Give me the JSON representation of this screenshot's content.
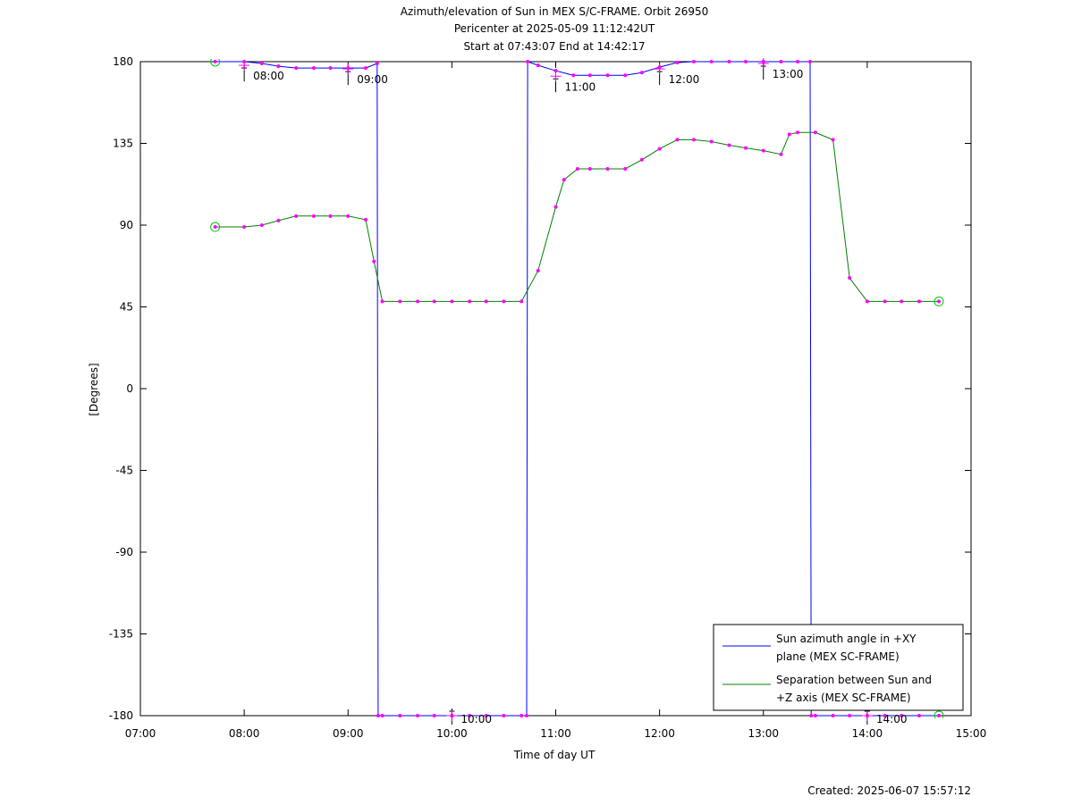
{
  "chart_data": {
    "type": "line",
    "title_lines": [
      "Azimuth/elevation of Sun in MEX S/C-FRAME.  Orbit 26950",
      "Pericenter at 2025-05-09 11:12:42UT",
      "Start at 07:43:07 End at 14:42:17"
    ],
    "xlabel": "Time of day UT",
    "ylabel": "[Degrees]",
    "xlim": [
      7,
      15
    ],
    "ylim": [
      -180,
      180
    ],
    "x_ticks": [
      "07:00",
      "08:00",
      "09:00",
      "10:00",
      "11:00",
      "12:00",
      "13:00",
      "14:00",
      "15:00"
    ],
    "y_ticks": [
      "180",
      "135",
      "90",
      "45",
      "0",
      "-45",
      "-90",
      "-135",
      "-180"
    ],
    "legend_position": "bottom-right",
    "hour_annotations": [
      {
        "x": 8,
        "label": "08:00",
        "y": 178
      },
      {
        "x": 9,
        "label": "09:00",
        "y": 176
      },
      {
        "x": 10,
        "label": "10:00",
        "y": -180
      },
      {
        "x": 11,
        "label": "11:00",
        "y": 172
      },
      {
        "x": 12,
        "label": "12:00",
        "y": 176
      },
      {
        "x": 13,
        "label": "13:00",
        "y": 179
      },
      {
        "x": 14,
        "label": "14:00",
        "y": -180
      }
    ],
    "series": [
      {
        "name": "Sun azimuth angle in +XY plane (MEX SC-FRAME)",
        "color": "#0000ff",
        "x": [
          7.72,
          8.0,
          8.17,
          8.33,
          8.5,
          8.67,
          8.83,
          9.0,
          9.17,
          9.28,
          9.29,
          9.33,
          9.5,
          9.67,
          9.83,
          10.0,
          10.17,
          10.33,
          10.5,
          10.67,
          10.72,
          10.73,
          10.83,
          11.0,
          11.17,
          11.33,
          11.5,
          11.67,
          11.83,
          12.0,
          12.17,
          12.33,
          12.5,
          12.67,
          12.83,
          13.0,
          13.17,
          13.33,
          13.45,
          13.46,
          13.5,
          13.67,
          13.83,
          14.0,
          14.17,
          14.33,
          14.5,
          14.69
        ],
        "y": [
          180,
          180,
          179,
          177.5,
          176.5,
          176.5,
          176.5,
          176.5,
          176.5,
          179,
          -180,
          -180,
          -180,
          -180,
          -180,
          -180,
          -180,
          -180,
          -180,
          -180,
          -180,
          180,
          178,
          175,
          172.5,
          172.5,
          172.5,
          172.5,
          174,
          177,
          179.5,
          180,
          180,
          180,
          180,
          180,
          180,
          180,
          180,
          -180,
          -180,
          -180,
          -180,
          -180,
          -180,
          -180,
          -180,
          -180
        ]
      },
      {
        "name": "Separation between Sun and +Z axis (MEX SC-FRAME)",
        "color": "#008000",
        "x": [
          7.72,
          8.0,
          8.17,
          8.33,
          8.5,
          8.67,
          8.83,
          9.0,
          9.17,
          9.25,
          9.33,
          9.5,
          9.67,
          9.83,
          10.0,
          10.17,
          10.33,
          10.5,
          10.67,
          10.83,
          11.0,
          11.08,
          11.21,
          11.33,
          11.5,
          11.67,
          11.83,
          12.0,
          12.17,
          12.33,
          12.5,
          12.67,
          12.83,
          13.0,
          13.17,
          13.25,
          13.33,
          13.5,
          13.67,
          13.83,
          14.0,
          14.17,
          14.33,
          14.5,
          14.69
        ],
        "y": [
          89,
          89,
          90,
          92.5,
          95,
          95,
          95,
          95,
          93,
          70,
          48,
          48,
          48,
          48,
          48,
          48,
          48,
          48,
          48,
          65,
          100,
          115,
          121,
          121,
          121,
          121,
          126,
          132,
          137,
          137,
          136,
          134,
          132.5,
          131,
          129,
          140,
          141,
          141,
          137,
          61,
          48,
          48,
          48,
          48,
          48
        ]
      }
    ],
    "marker_color": "#ff00ff",
    "endpoint_marker_color": "#00cc00",
    "legend_entries": [
      {
        "line1": "Sun azimuth angle in +XY",
        "line2": "plane (MEX SC-FRAME)",
        "color": "#0000ff"
      },
      {
        "line1": "Separation between Sun and",
        "line2": "+Z axis (MEX SC-FRAME)",
        "color": "#008000"
      }
    ]
  },
  "footer": {
    "created": "Created: 2025-06-07 15:57:12"
  }
}
